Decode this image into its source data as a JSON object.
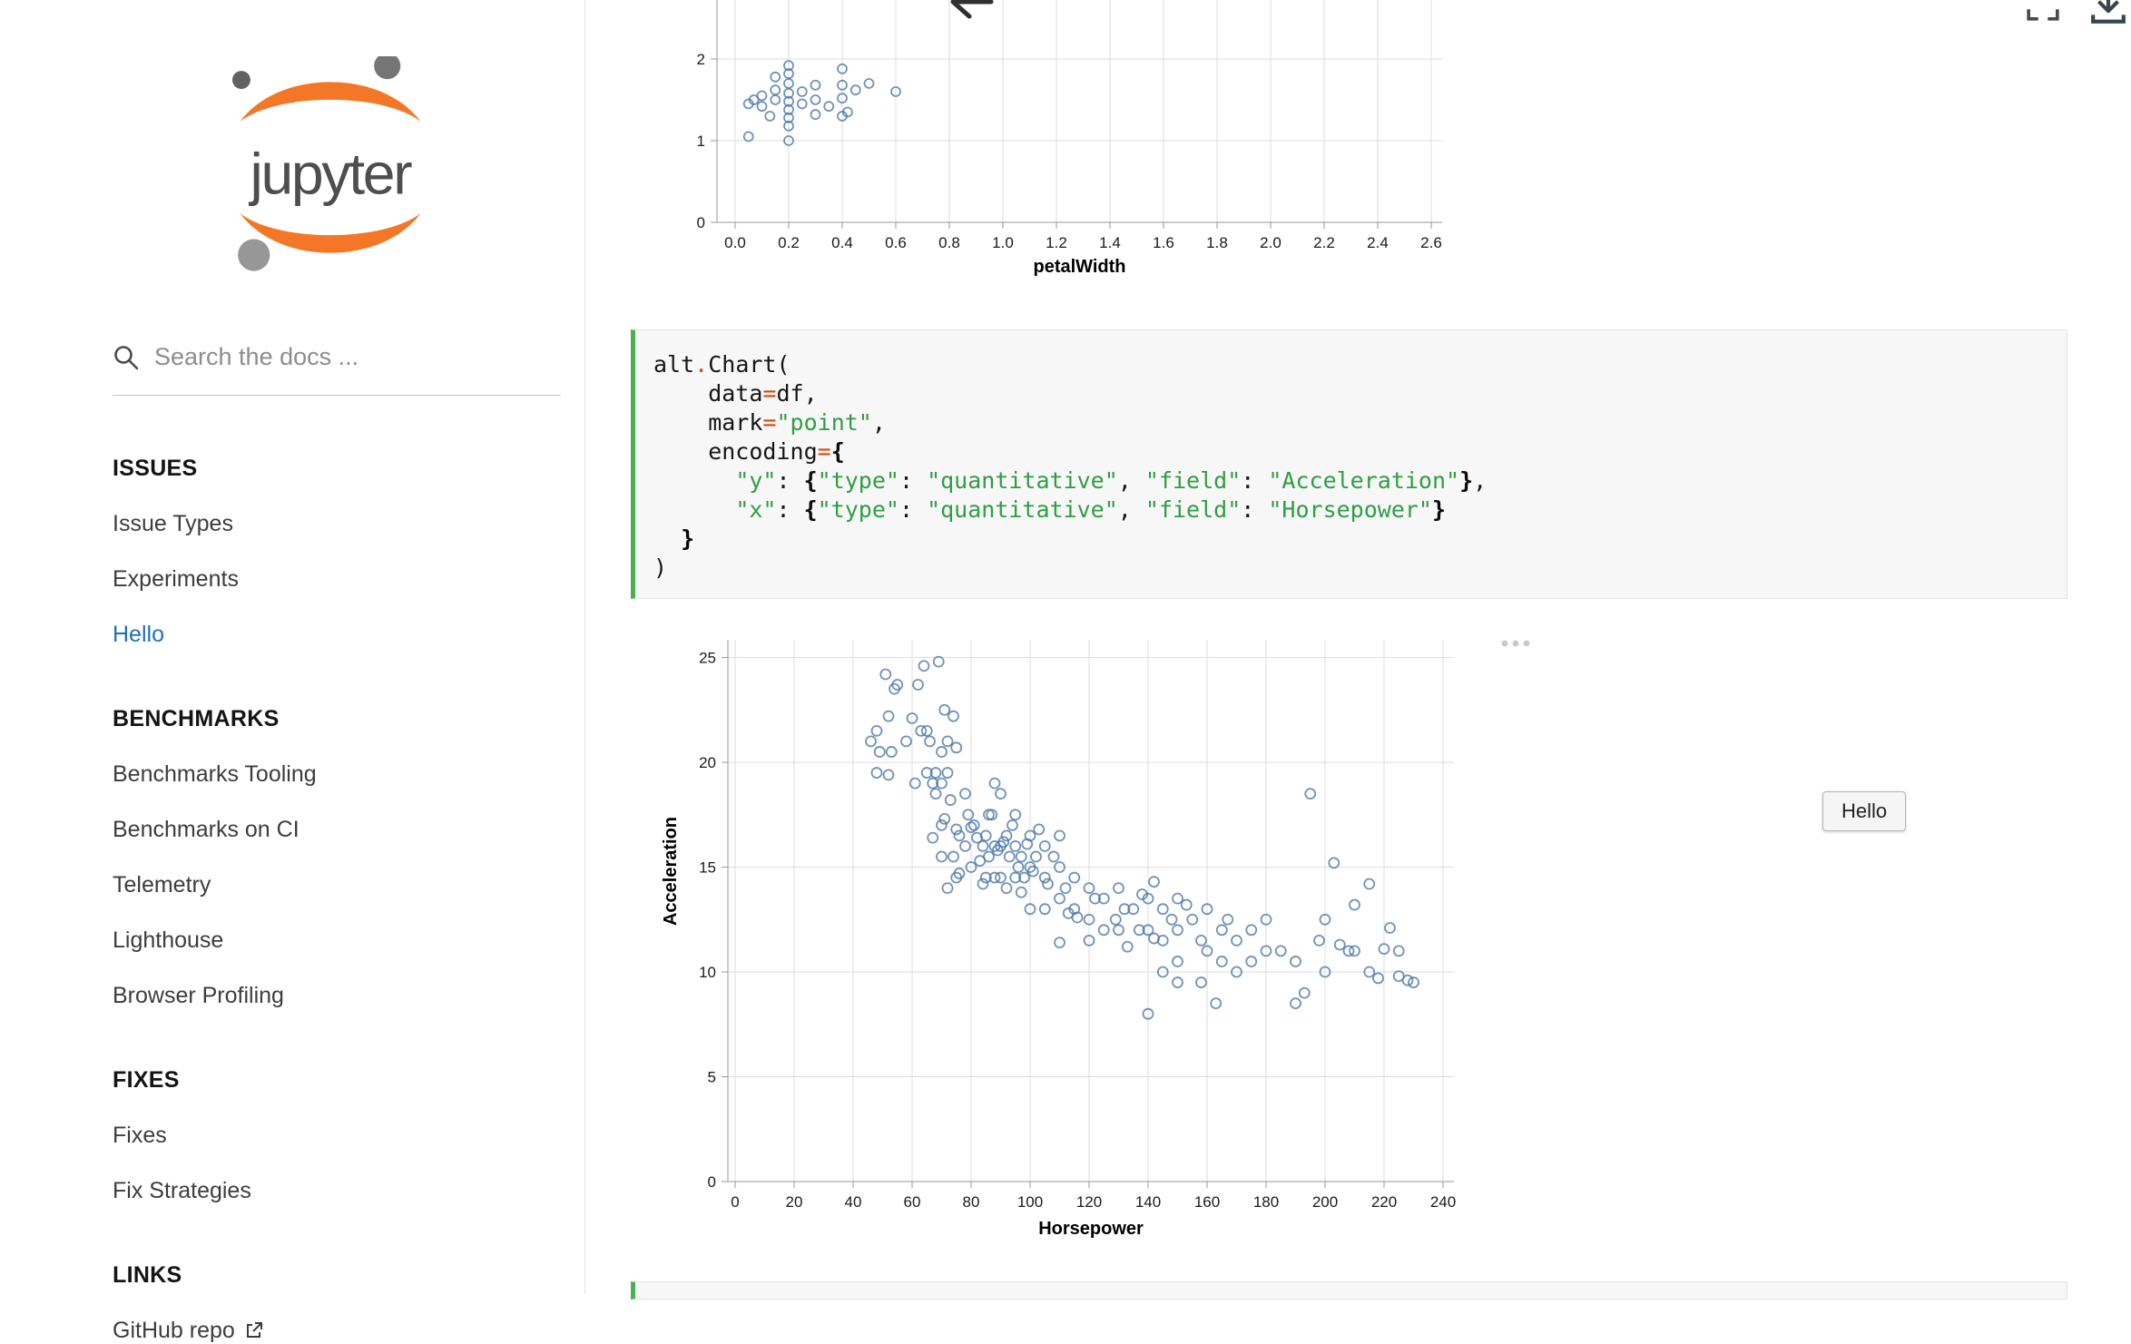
{
  "colors": {
    "accent_green": "#4caf50",
    "point_stroke": "#4c78a8",
    "link_blue": "#2170b8",
    "logo_orange": "#f37726"
  },
  "sidebar": {
    "logo_text": "jupyter",
    "search": {
      "placeholder": "Search the docs ..."
    },
    "sections": [
      {
        "heading": "ISSUES",
        "items": [
          {
            "label": "Issue Types"
          },
          {
            "label": "Experiments"
          },
          {
            "label": "Hello",
            "active": true
          }
        ]
      },
      {
        "heading": "BENCHMARKS",
        "items": [
          {
            "label": "Benchmarks Tooling"
          },
          {
            "label": "Benchmarks on CI"
          },
          {
            "label": "Telemetry"
          },
          {
            "label": "Lighthouse"
          },
          {
            "label": "Browser Profiling"
          }
        ]
      },
      {
        "heading": "FIXES",
        "items": [
          {
            "label": "Fixes"
          },
          {
            "label": "Fix Strategies"
          }
        ]
      },
      {
        "heading": "LINKS",
        "items": [
          {
            "label": "GitHub repo",
            "external": true
          }
        ]
      }
    ]
  },
  "widgets": {
    "hello_label": "Hello"
  },
  "code_block": {
    "lines": [
      [
        [
          "alt",
          "p"
        ],
        [
          ".",
          "o"
        ],
        [
          "Chart(",
          "p"
        ]
      ],
      [
        [
          "    data",
          "p"
        ],
        [
          "=",
          "o"
        ],
        [
          "df,",
          "p"
        ]
      ],
      [
        [
          "    mark",
          "p"
        ],
        [
          "=",
          "o"
        ],
        [
          "\"point\"",
          "s"
        ],
        [
          ",",
          "p"
        ]
      ],
      [
        [
          "    encoding",
          "p"
        ],
        [
          "=",
          "o"
        ],
        [
          "{",
          "b"
        ]
      ],
      [
        [
          "      ",
          "p"
        ],
        [
          "\"y\"",
          "s"
        ],
        [
          ": ",
          "p"
        ],
        [
          "{",
          "b"
        ],
        [
          "\"type\"",
          "s"
        ],
        [
          ": ",
          "p"
        ],
        [
          "\"quantitative\"",
          "s"
        ],
        [
          ", ",
          "p"
        ],
        [
          "\"field\"",
          "s"
        ],
        [
          ": ",
          "p"
        ],
        [
          "\"Acceleration\"",
          "s"
        ],
        [
          "}",
          "b"
        ],
        [
          ",",
          "p"
        ]
      ],
      [
        [
          "      ",
          "p"
        ],
        [
          "\"x\"",
          "s"
        ],
        [
          ": ",
          "p"
        ],
        [
          "{",
          "b"
        ],
        [
          "\"type\"",
          "s"
        ],
        [
          ": ",
          "p"
        ],
        [
          "\"quantitative\"",
          "s"
        ],
        [
          ", ",
          "p"
        ],
        [
          "\"field\"",
          "s"
        ],
        [
          ": ",
          "p"
        ],
        [
          "\"Horsepower\"",
          "s"
        ],
        [
          "}",
          "b"
        ]
      ],
      [
        [
          "  ",
          "p"
        ],
        [
          "}",
          "b"
        ]
      ],
      [
        [
          ")",
          "p"
        ]
      ]
    ]
  },
  "chart_data": [
    {
      "id": "chart-top",
      "type": "scatter",
      "title": "",
      "xlabel": "petalWidth",
      "ylabel": "",
      "xlim": [
        0,
        2.6
      ],
      "ylim": [
        0,
        2
      ],
      "grid": true,
      "clipped_top": true,
      "xticks": {
        "values": [
          0,
          0.2,
          0.4,
          0.6,
          0.8,
          1,
          1.2,
          1.4,
          1.6,
          1.8,
          2,
          2.2,
          2.4,
          2.6
        ],
        "labels": [
          "0.0",
          "0.2",
          "0.4",
          "0.6",
          "0.8",
          "1.0",
          "1.2",
          "1.4",
          "1.6",
          "1.8",
          "2.0",
          "2.2",
          "2.4",
          "2.6"
        ]
      },
      "yticks": {
        "values": [
          0,
          1,
          2
        ],
        "labels": [
          "0",
          "1",
          "2"
        ]
      },
      "points": [
        [
          0.05,
          1.05
        ],
        [
          0.05,
          1.45
        ],
        [
          0.07,
          1.5
        ],
        [
          0.1,
          1.42
        ],
        [
          0.1,
          1.55
        ],
        [
          0.13,
          1.3
        ],
        [
          0.15,
          1.5
        ],
        [
          0.15,
          1.62
        ],
        [
          0.15,
          1.78
        ],
        [
          0.2,
          1.0
        ],
        [
          0.2,
          1.18
        ],
        [
          0.2,
          1.28
        ],
        [
          0.2,
          1.38
        ],
        [
          0.2,
          1.48
        ],
        [
          0.2,
          1.58
        ],
        [
          0.2,
          1.7
        ],
        [
          0.2,
          1.82
        ],
        [
          0.2,
          1.92
        ],
        [
          0.25,
          1.45
        ],
        [
          0.25,
          1.6
        ],
        [
          0.3,
          1.32
        ],
        [
          0.3,
          1.5
        ],
        [
          0.3,
          1.68
        ],
        [
          0.35,
          1.42
        ],
        [
          0.4,
          1.3
        ],
        [
          0.4,
          1.52
        ],
        [
          0.4,
          1.68
        ],
        [
          0.4,
          1.88
        ],
        [
          0.42,
          1.35
        ],
        [
          0.45,
          1.62
        ],
        [
          0.5,
          1.7
        ],
        [
          0.6,
          1.6
        ]
      ]
    },
    {
      "id": "chart-main",
      "type": "scatter",
      "title": "",
      "xlabel": "Horsepower",
      "ylabel": "Acceleration",
      "xlim": [
        0,
        240
      ],
      "ylim": [
        0,
        25
      ],
      "grid": true,
      "xticks": {
        "values": [
          0,
          20,
          40,
          60,
          80,
          100,
          120,
          140,
          160,
          180,
          200,
          220,
          240
        ],
        "labels": [
          "0",
          "20",
          "40",
          "60",
          "80",
          "100",
          "120",
          "140",
          "160",
          "180",
          "200",
          "220",
          "240"
        ]
      },
      "yticks": {
        "values": [
          0,
          5,
          10,
          15,
          20,
          25
        ],
        "labels": [
          "0",
          "5",
          "10",
          "15",
          "20",
          "25"
        ]
      },
      "points": [
        [
          46,
          21
        ],
        [
          48,
          21.5
        ],
        [
          48,
          19.5
        ],
        [
          49,
          20.5
        ],
        [
          51,
          24.2
        ],
        [
          52,
          22.2
        ],
        [
          52,
          19.4
        ],
        [
          53,
          20.5
        ],
        [
          54,
          23.5
        ],
        [
          55,
          23.7
        ],
        [
          58,
          21
        ],
        [
          60,
          22.1
        ],
        [
          61,
          19
        ],
        [
          62,
          23.7
        ],
        [
          63,
          21.5
        ],
        [
          64,
          24.6
        ],
        [
          65,
          21.5
        ],
        [
          65,
          19.5
        ],
        [
          66,
          21
        ],
        [
          67,
          19
        ],
        [
          67,
          16.4
        ],
        [
          68,
          19.5
        ],
        [
          68,
          18.5
        ],
        [
          69,
          24.8
        ],
        [
          70,
          20.5
        ],
        [
          70,
          19
        ],
        [
          70,
          17
        ],
        [
          70,
          15.5
        ],
        [
          71,
          22.5
        ],
        [
          71,
          17.3
        ],
        [
          72,
          21
        ],
        [
          72,
          19.5
        ],
        [
          72,
          14
        ],
        [
          73,
          18.2
        ],
        [
          74,
          22.2
        ],
        [
          74,
          15.5
        ],
        [
          75,
          20.7
        ],
        [
          75,
          16.8
        ],
        [
          75,
          14.5
        ],
        [
          76,
          16.5
        ],
        [
          76,
          14.7
        ],
        [
          78,
          18.5
        ],
        [
          78,
          16
        ],
        [
          79,
          17.5
        ],
        [
          80,
          16.9
        ],
        [
          80,
          15
        ],
        [
          81,
          17
        ],
        [
          82,
          16.4
        ],
        [
          83,
          15.3
        ],
        [
          84,
          16
        ],
        [
          84,
          14.2
        ],
        [
          85,
          16.5
        ],
        [
          85,
          14.5
        ],
        [
          86,
          17.5
        ],
        [
          86,
          15.5
        ],
        [
          87,
          17.5
        ],
        [
          88,
          19
        ],
        [
          88,
          16
        ],
        [
          88,
          14.5
        ],
        [
          89,
          15.8
        ],
        [
          90,
          18.5
        ],
        [
          90,
          16
        ],
        [
          90,
          14.5
        ],
        [
          91,
          16.2
        ],
        [
          92,
          16.5
        ],
        [
          92,
          14
        ],
        [
          93,
          15.5
        ],
        [
          94,
          17
        ],
        [
          95,
          17.5
        ],
        [
          95,
          16
        ],
        [
          95,
          14.5
        ],
        [
          96,
          15
        ],
        [
          97,
          15.5
        ],
        [
          97,
          13.8
        ],
        [
          98,
          14.5
        ],
        [
          99,
          16.1
        ],
        [
          100,
          16.5
        ],
        [
          100,
          15
        ],
        [
          100,
          13
        ],
        [
          101,
          14.8
        ],
        [
          102,
          15.5
        ],
        [
          103,
          16.8
        ],
        [
          105,
          16
        ],
        [
          105,
          14.5
        ],
        [
          105,
          13
        ],
        [
          106,
          14.2
        ],
        [
          108,
          15.5
        ],
        [
          110,
          16.5
        ],
        [
          110,
          15
        ],
        [
          110,
          13.5
        ],
        [
          110,
          11.4
        ],
        [
          112,
          14
        ],
        [
          113,
          12.8
        ],
        [
          115,
          14.5
        ],
        [
          115,
          13
        ],
        [
          116,
          12.6
        ],
        [
          120,
          14
        ],
        [
          120,
          12.5
        ],
        [
          120,
          11.5
        ],
        [
          122,
          13.5
        ],
        [
          125,
          13.5
        ],
        [
          125,
          12
        ],
        [
          129,
          12.5
        ],
        [
          130,
          14
        ],
        [
          130,
          12
        ],
        [
          132,
          13
        ],
        [
          133,
          11.2
        ],
        [
          135,
          13
        ],
        [
          137,
          12
        ],
        [
          138,
          13.7
        ],
        [
          140,
          13.5
        ],
        [
          140,
          12
        ],
        [
          140,
          8
        ],
        [
          142,
          14.3
        ],
        [
          142,
          11.6
        ],
        [
          145,
          13
        ],
        [
          145,
          11.5
        ],
        [
          145,
          10
        ],
        [
          148,
          12.5
        ],
        [
          150,
          13.5
        ],
        [
          150,
          12
        ],
        [
          150,
          10.5
        ],
        [
          150,
          9.5
        ],
        [
          153,
          13.2
        ],
        [
          155,
          12.5
        ],
        [
          158,
          11.5
        ],
        [
          158,
          9.5
        ],
        [
          160,
          13
        ],
        [
          160,
          11
        ],
        [
          163,
          8.5
        ],
        [
          165,
          12
        ],
        [
          165,
          10.5
        ],
        [
          167,
          12.5
        ],
        [
          170,
          11.5
        ],
        [
          170,
          10
        ],
        [
          175,
          12
        ],
        [
          175,
          10.5
        ],
        [
          180,
          12.5
        ],
        [
          180,
          11
        ],
        [
          185,
          11
        ],
        [
          190,
          10.5
        ],
        [
          190,
          8.5
        ],
        [
          193,
          9
        ],
        [
          195,
          18.5
        ],
        [
          198,
          11.5
        ],
        [
          200,
          12.5
        ],
        [
          200,
          10
        ],
        [
          203,
          15.2
        ],
        [
          205,
          11.3
        ],
        [
          208,
          11
        ],
        [
          210,
          13.2
        ],
        [
          210,
          11
        ],
        [
          215,
          14.2
        ],
        [
          215,
          10
        ],
        [
          218,
          9.7
        ],
        [
          220,
          11.1
        ],
        [
          222,
          12.1
        ],
        [
          225,
          11
        ],
        [
          225,
          9.8
        ],
        [
          228,
          9.6
        ],
        [
          230,
          9.5
        ]
      ]
    }
  ]
}
